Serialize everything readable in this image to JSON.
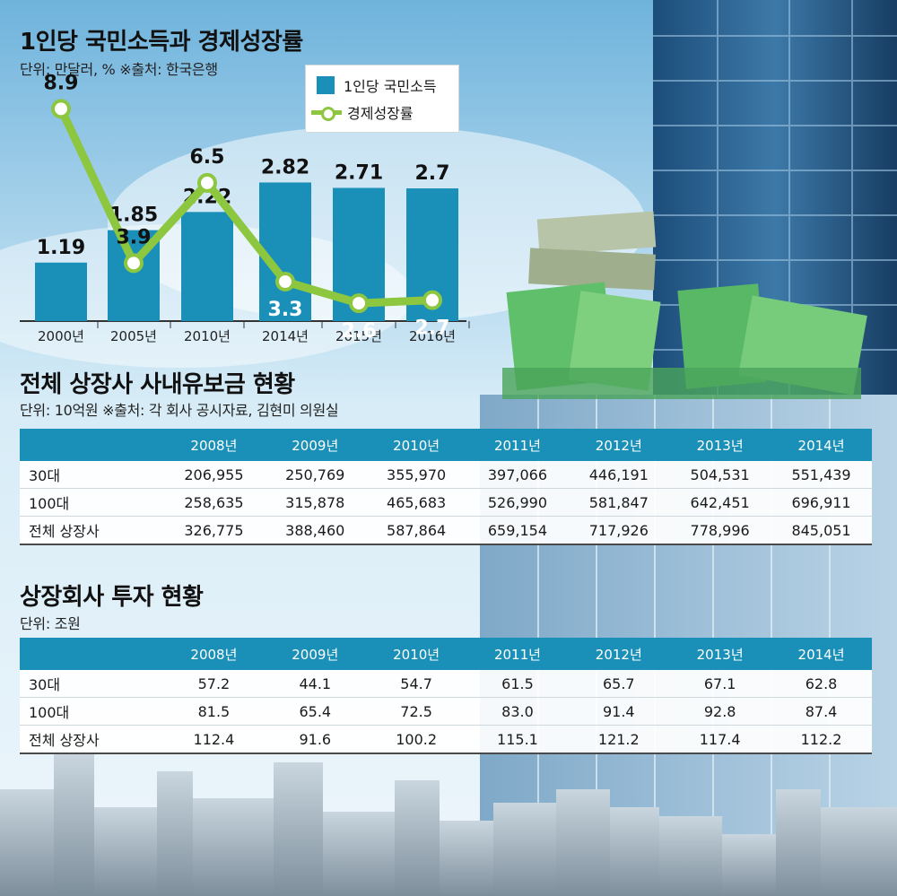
{
  "section1": {
    "title": "1인당 국민소득과 경제성장률",
    "unit": "단위: 만달러, %  ※출처: 한국은행"
  },
  "legend": {
    "bar_label": "1인당 국민소득",
    "line_label": "경제성장률"
  },
  "colors": {
    "bar": "#1a90b8",
    "line": "#8dc63f",
    "table_header": "#1a90b8"
  },
  "chart_data": {
    "type": "bar",
    "categories": [
      "2000년",
      "2005년",
      "2010년",
      "2014년",
      "2015년",
      "2016년"
    ],
    "series": [
      {
        "name": "1인당 국민소득",
        "type": "bar",
        "values": [
          1.19,
          1.85,
          2.22,
          2.82,
          2.71,
          2.7
        ],
        "labels": [
          "1.19",
          "1.85",
          "2.22",
          "2.82",
          "2.71",
          "2.7"
        ]
      },
      {
        "name": "경제성장률",
        "type": "line",
        "values": [
          8.9,
          3.9,
          6.5,
          3.3,
          2.6,
          2.7
        ],
        "labels": [
          "8.9",
          "3.9",
          "6.5",
          "3.3",
          "2.6",
          "2.7"
        ]
      }
    ],
    "legend": "top-right",
    "grid": false
  },
  "section2": {
    "title": "전체 상장사 사내유보금 현황",
    "unit": "단위: 10억원  ※출처: 각 회사 공시자료, 김현미 의원실",
    "headers": [
      "",
      "2008년",
      "2009년",
      "2010년",
      "2011년",
      "2012년",
      "2013년",
      "2014년"
    ],
    "rows": [
      [
        "30대",
        "206,955",
        "250,769",
        "355,970",
        "397,066",
        "446,191",
        "504,531",
        "551,439"
      ],
      [
        "100대",
        "258,635",
        "315,878",
        "465,683",
        "526,990",
        "581,847",
        "642,451",
        "696,911"
      ],
      [
        "전체 상장사",
        "326,775",
        "388,460",
        "587,864",
        "659,154",
        "717,926",
        "778,996",
        "845,051"
      ]
    ]
  },
  "section3": {
    "title": "상장회사 투자 현황",
    "unit": "단위: 조원",
    "headers": [
      "",
      "2008년",
      "2009년",
      "2010년",
      "2011년",
      "2012년",
      "2013년",
      "2014년"
    ],
    "rows": [
      [
        "30대",
        "57.2",
        "44.1",
        "54.7",
        "61.5",
        "65.7",
        "67.1",
        "62.8"
      ],
      [
        "100대",
        "81.5",
        "65.4",
        "72.5",
        "83.0",
        "91.4",
        "92.8",
        "87.4"
      ],
      [
        "전체 상장사",
        "112.4",
        "91.6",
        "100.2",
        "115.1",
        "121.2",
        "117.4",
        "112.2"
      ]
    ]
  }
}
